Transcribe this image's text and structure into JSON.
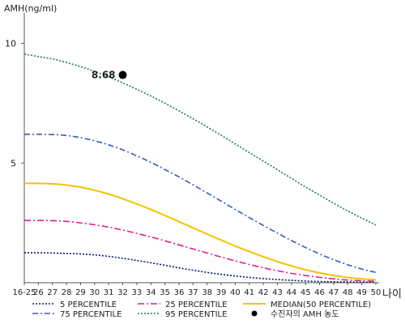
{
  "chart_data": {
    "type": "line",
    "ylabel": "AMH(ng/ml)",
    "xlabel": "나이",
    "ylim": [
      0,
      11
    ],
    "yticks": [
      5,
      10
    ],
    "ytick_labels": [
      "5",
      "10"
    ],
    "categories": [
      "16-25",
      "26",
      "27",
      "28",
      "29",
      "30",
      "31",
      "32",
      "33",
      "34",
      "35",
      "36",
      "37",
      "38",
      "39",
      "40",
      "41",
      "42",
      "43",
      "44",
      "45",
      "46",
      "47",
      "48",
      "49",
      "50"
    ],
    "series": [
      {
        "name": "5 PERCENTILE",
        "color": "#0a1a6b",
        "dash": "2,2",
        "values": [
          1.25,
          1.25,
          1.24,
          1.22,
          1.2,
          1.16,
          1.1,
          1.02,
          0.93,
          0.83,
          0.73,
          0.62,
          0.52,
          0.43,
          0.35,
          0.28,
          0.22,
          0.17,
          0.13,
          0.1,
          0.07,
          0.05,
          0.04,
          0.03,
          0.02,
          0.02
        ]
      },
      {
        "name": "25 PERCENTILE",
        "color": "#e0208a",
        "dash": "8,3,2,3",
        "values": [
          2.6,
          2.6,
          2.59,
          2.56,
          2.5,
          2.42,
          2.32,
          2.2,
          2.06,
          1.91,
          1.75,
          1.58,
          1.41,
          1.24,
          1.07,
          0.91,
          0.76,
          0.62,
          0.5,
          0.39,
          0.3,
          0.22,
          0.16,
          0.11,
          0.08,
          0.06
        ]
      },
      {
        "name": "MEDIAN(50 PERCENTILE)",
        "color": "#f2c200",
        "dash": "",
        "values": [
          4.15,
          4.15,
          4.13,
          4.08,
          3.99,
          3.86,
          3.7,
          3.51,
          3.29,
          3.06,
          2.81,
          2.55,
          2.29,
          2.03,
          1.78,
          1.53,
          1.3,
          1.08,
          0.88,
          0.7,
          0.54,
          0.41,
          0.3,
          0.22,
          0.16,
          0.12
        ]
      },
      {
        "name": "75 PERCENTILE",
        "color": "#3a5bbf",
        "dash": "7,3,2,3",
        "values": [
          6.2,
          6.2,
          6.19,
          6.15,
          6.06,
          5.93,
          5.76,
          5.55,
          5.3,
          5.03,
          4.73,
          4.42,
          4.09,
          3.75,
          3.41,
          3.06,
          2.72,
          2.39,
          2.07,
          1.76,
          1.47,
          1.2,
          0.96,
          0.75,
          0.57,
          0.43
        ]
      },
      {
        "name": "95 PERCENTILE",
        "color": "#1f7a4f",
        "dash": "2,2",
        "values": [
          9.55,
          9.45,
          9.35,
          9.2,
          9.03,
          8.83,
          8.6,
          8.35,
          8.08,
          7.8,
          7.5,
          7.18,
          6.85,
          6.51,
          6.16,
          5.8,
          5.44,
          5.08,
          4.72,
          4.36,
          4.0,
          3.66,
          3.32,
          3.0,
          2.7,
          2.41
        ]
      }
    ],
    "marker": {
      "name": "수진자의 AMH 농도",
      "x": "32",
      "y": 8.68,
      "label": "8.68",
      "color": "#000000"
    },
    "legend_order": [
      "5 PERCENTILE",
      "25 PERCENTILE",
      "MEDIAN(50 PERCENTILE)",
      "75 PERCENTILE",
      "95 PERCENTILE",
      "수진자의 AMH 농도"
    ],
    "legend": "bottom"
  }
}
